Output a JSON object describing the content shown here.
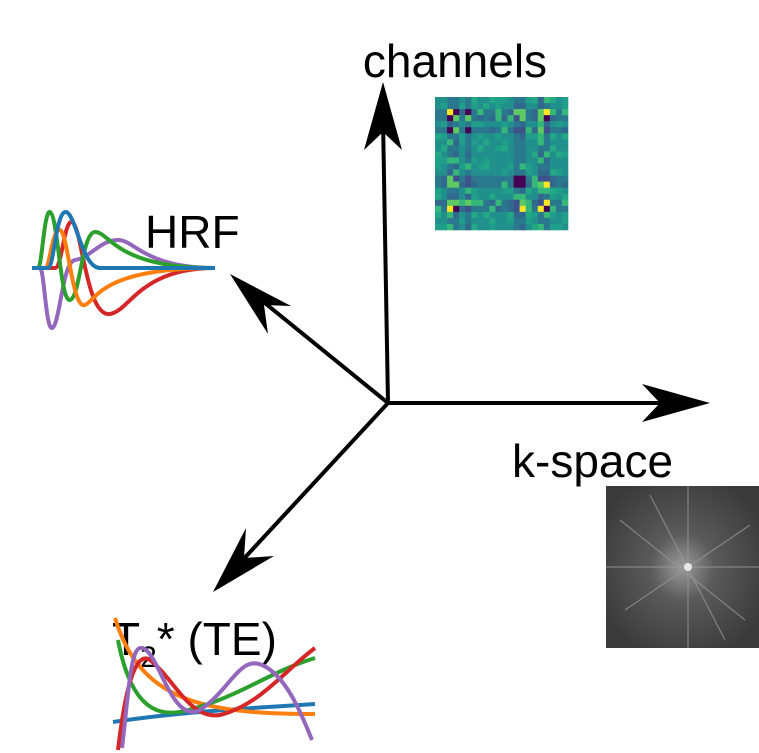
{
  "axes": {
    "channels": {
      "label": "channels"
    },
    "hrf": {
      "label": "HRF"
    },
    "kspace": {
      "label": "k-space"
    },
    "te": {
      "base": "T",
      "sub": "2",
      "rest": "* (TE)"
    }
  }
}
